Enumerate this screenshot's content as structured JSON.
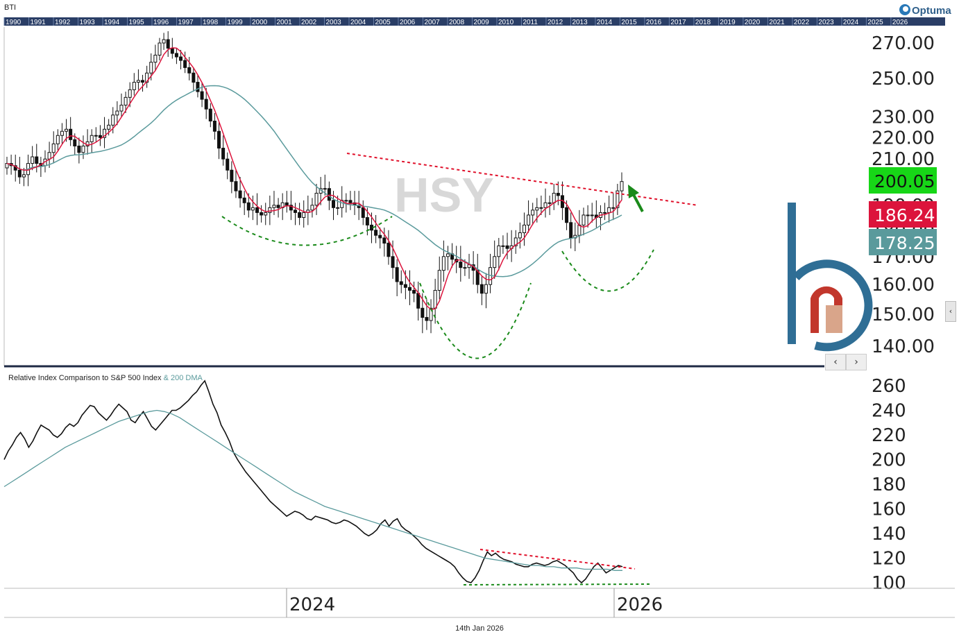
{
  "symbol": "BTI",
  "watermark": "HSY",
  "logo_text": "Optuma",
  "date_label": "14th Jan 2026",
  "year_strip": [
    "1990",
    "1991",
    "1992",
    "1993",
    "1994",
    "1995",
    "1996",
    "1997",
    "1998",
    "1999",
    "2000",
    "2001",
    "2002",
    "2003",
    "2004",
    "2005",
    "2006",
    "2007",
    "2008",
    "2009",
    "2010",
    "2011",
    "2012",
    "2013",
    "2014",
    "2015",
    "2016",
    "2017",
    "2018",
    "2019",
    "2020",
    "2021",
    "2022",
    "2023",
    "2024",
    "2025",
    "2026"
  ],
  "price_badges": [
    {
      "label": "200.05",
      "color": "#17d617"
    },
    {
      "label": "186.24",
      "color": "#dc143c"
    },
    {
      "label": "178.25",
      "color": "#5a9a9c"
    }
  ],
  "colors": {
    "price": "#111111",
    "short_ma": "#dc143c",
    "long_ma": "#5a9a9c",
    "trendline": "#e0102a",
    "pattern": "#1a8a1a",
    "arrow": "#1a8a1a"
  },
  "lower_title": "Relative Index Comparison to S&P 500 Index",
  "lower_title_suffix": "& 200 DMA",
  "x_axis_labels": [
    "2024",
    "2026"
  ],
  "nav": {
    "prev": "‹",
    "next": "›",
    "side": "‹"
  },
  "chart_data": [
    {
      "type": "candlestick",
      "title": "BTI",
      "ylim": [
        135,
        280
      ],
      "y_ticks": [
        "140.00",
        "150.00",
        "160.00",
        "170.00",
        "180.00",
        "190.00",
        "200.00",
        "210.00",
        "220.00",
        "230.00",
        "250.00",
        "270.00"
      ],
      "series": [
        {
          "name": "Price",
          "style": "candles",
          "close": [
            208,
            207,
            205,
            202,
            203,
            208,
            211,
            208,
            207,
            210,
            213,
            217,
            221,
            223,
            224,
            219,
            216,
            213,
            216,
            218,
            221,
            221,
            220,
            224,
            226,
            231,
            233,
            236,
            240,
            244,
            248,
            249,
            248,
            253,
            259,
            263,
            270,
            272,
            267,
            264,
            262,
            260,
            256,
            253,
            248,
            243,
            239,
            234,
            228,
            223,
            215,
            210,
            205,
            200,
            196,
            193,
            191,
            188,
            189,
            187,
            186,
            187,
            189,
            190,
            189,
            191,
            190,
            188,
            187,
            185,
            187,
            188,
            190,
            195,
            197,
            197,
            192,
            189,
            189,
            192,
            192,
            191,
            190,
            189,
            185,
            182,
            180,
            178,
            177,
            175,
            170,
            166,
            161,
            160,
            159,
            158,
            157,
            152,
            149,
            148,
            152,
            158,
            165,
            170,
            171,
            169,
            168,
            166,
            166,
            167,
            165,
            160,
            157,
            160,
            166,
            170,
            174,
            174,
            173,
            174,
            177,
            179,
            182,
            186,
            188,
            189,
            189,
            191,
            191,
            195,
            194,
            189,
            183,
            177,
            178,
            182,
            186,
            186,
            186,
            185,
            187,
            187,
            189,
            189,
            196,
            200
          ]
        },
        {
          "name": "Short MA",
          "style": "line",
          "color": "#dc143c"
        },
        {
          "name": "Long MA",
          "style": "line",
          "color": "#5a9a9c"
        }
      ],
      "last_values": {
        "Price": 200.05,
        "Short MA": 186.24,
        "Long MA": 178.25
      },
      "annotations": [
        "descending resistance trendline",
        "inverse head-and-shoulders pattern",
        "breakout arrow"
      ]
    },
    {
      "type": "line",
      "title": "Relative Index Comparison to S&P 500 Index & 200 DMA",
      "ylim": [
        100,
        265
      ],
      "y_ticks": [
        "100",
        "120",
        "140",
        "160",
        "180",
        "200",
        "220",
        "240",
        "260"
      ],
      "x_labels": [
        "2024",
        "2026"
      ],
      "series": [
        {
          "name": "Relative Index",
          "color": "#111111",
          "values": [
            200,
            207,
            212,
            218,
            222,
            217,
            210,
            215,
            222,
            228,
            226,
            224,
            220,
            218,
            221,
            226,
            229,
            227,
            230,
            236,
            240,
            244,
            243,
            238,
            235,
            232,
            236,
            241,
            245,
            242,
            239,
            232,
            230,
            235,
            239,
            233,
            227,
            224,
            228,
            232,
            236,
            240,
            240,
            242,
            245,
            248,
            252,
            255,
            260,
            264,
            255,
            245,
            238,
            228,
            222,
            215,
            206,
            200,
            195,
            190,
            186,
            182,
            178,
            174,
            170,
            166,
            163,
            160,
            157,
            154,
            156,
            158,
            157,
            155,
            152,
            151,
            154,
            153,
            152,
            151,
            149,
            148,
            149,
            151,
            150,
            148,
            146,
            143,
            140,
            138,
            140,
            143,
            148,
            151,
            146,
            150,
            152,
            146,
            143,
            141,
            138,
            135,
            131,
            128,
            126,
            124,
            122,
            120,
            118,
            116,
            113,
            108,
            104,
            101,
            100,
            104,
            110,
            118,
            125,
            122,
            124,
            121,
            119,
            118,
            117,
            115,
            114,
            113,
            113,
            115,
            116,
            115,
            114,
            115,
            117,
            118,
            116,
            114,
            111,
            108,
            103,
            100,
            103,
            108,
            113,
            116,
            112,
            108,
            110,
            112,
            114,
            113
          ]
        },
        {
          "name": "200 DMA",
          "color": "#5a9a9c",
          "values": [
            178,
            182,
            186,
            190,
            194,
            198,
            202,
            206,
            210,
            213,
            216,
            219,
            222,
            225,
            228,
            231,
            233,
            235,
            237,
            239,
            240,
            239,
            237,
            234,
            230,
            226,
            222,
            218,
            214,
            210,
            206,
            202,
            198,
            194,
            190,
            186,
            182,
            178,
            174,
            171,
            168,
            165,
            162,
            160,
            158,
            156,
            154,
            152,
            150,
            148,
            146,
            144,
            142,
            140,
            138,
            136,
            134,
            132,
            130,
            128,
            126,
            124,
            122,
            120,
            119,
            118,
            117,
            116,
            115,
            114,
            114,
            113,
            113,
            112,
            112,
            112,
            111,
            111,
            111,
            111,
            110,
            110
          ]
        }
      ],
      "annotations": [
        "descending resistance trendline",
        "flat support line"
      ]
    }
  ]
}
